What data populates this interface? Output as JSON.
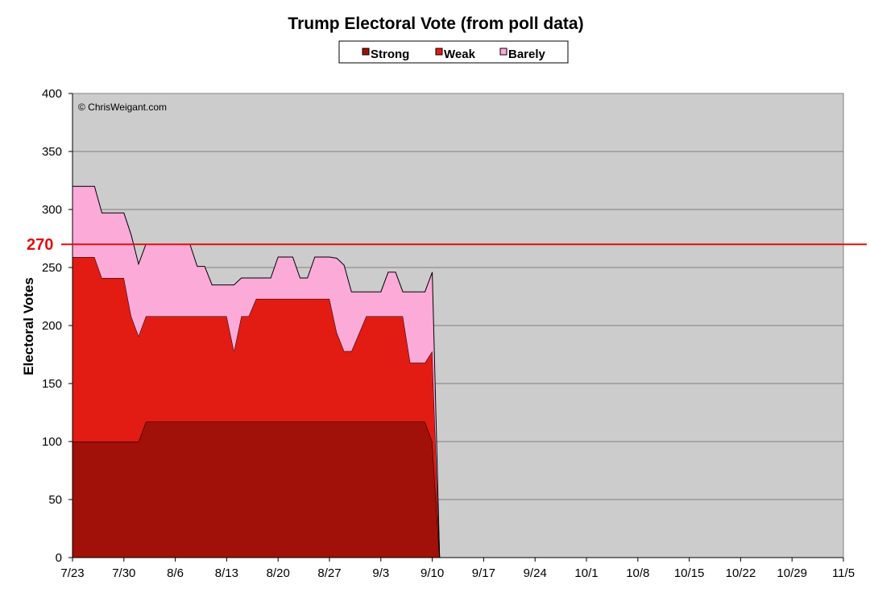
{
  "chart_data": {
    "type": "area",
    "title": "Trump Electoral Vote (from poll data)",
    "xlabel": "",
    "ylabel": "Electoral Votes",
    "credit": "© ChrisWeigant.com",
    "ylim": [
      0,
      400
    ],
    "yticks": [
      0,
      50,
      100,
      150,
      200,
      250,
      300,
      350,
      400
    ],
    "xlim": [
      "2016-07-23",
      "2016-11-05"
    ],
    "xticks": [
      "7/23",
      "7/30",
      "8/6",
      "8/13",
      "8/20",
      "8/27",
      "9/3",
      "9/10",
      "9/17",
      "9/24",
      "10/1",
      "10/8",
      "10/15",
      "10/22",
      "10/29",
      "11/5"
    ],
    "grid": true,
    "stacked": true,
    "legend": "top-center",
    "reference_line": {
      "value": 270,
      "label": "270",
      "color": "#e01010"
    },
    "dates": [
      "2016-07-23",
      "2016-07-26",
      "2016-07-27",
      "2016-07-30",
      "2016-07-31",
      "2016-08-01",
      "2016-08-02",
      "2016-08-03",
      "2016-08-08",
      "2016-08-09",
      "2016-08-10",
      "2016-08-11",
      "2016-08-13",
      "2016-08-14",
      "2016-08-15",
      "2016-08-16",
      "2016-08-17",
      "2016-08-19",
      "2016-08-20",
      "2016-08-22",
      "2016-08-23",
      "2016-08-24",
      "2016-08-25",
      "2016-08-27",
      "2016-08-28",
      "2016-08-29",
      "2016-08-30",
      "2016-09-01",
      "2016-09-02",
      "2016-09-03",
      "2016-09-04",
      "2016-09-05",
      "2016-09-06",
      "2016-09-07",
      "2016-09-09",
      "2016-09-10",
      "2016-09-11"
    ],
    "series": [
      {
        "name": "Strong",
        "color": "#a11109",
        "values": [
          100,
          100,
          100,
          100,
          100,
          100,
          117,
          117,
          117,
          117,
          117,
          117,
          117,
          117,
          117,
          117,
          117,
          117,
          117,
          117,
          117,
          117,
          117,
          117,
          117,
          117,
          117,
          117,
          117,
          117,
          117,
          117,
          117,
          117,
          117,
          100,
          0
        ]
      },
      {
        "name": "Weak",
        "color": "#e21c13",
        "values": [
          159,
          159,
          141,
          141,
          108,
          91,
          91,
          91,
          91,
          91,
          91,
          91,
          91,
          61,
          91,
          91,
          106,
          106,
          106,
          106,
          106,
          106,
          106,
          106,
          77,
          61,
          61,
          91,
          91,
          91,
          91,
          91,
          91,
          51,
          51,
          78,
          0
        ]
      },
      {
        "name": "Barely",
        "color": "#fcaad8",
        "values": [
          61,
          61,
          56,
          56,
          70,
          62,
          62,
          62,
          62,
          43,
          43,
          27,
          27,
          57,
          33,
          33,
          18,
          18,
          36,
          36,
          18,
          18,
          36,
          36,
          64,
          74,
          51,
          21,
          21,
          21,
          38,
          38,
          21,
          61,
          61,
          68,
          0
        ]
      }
    ]
  }
}
